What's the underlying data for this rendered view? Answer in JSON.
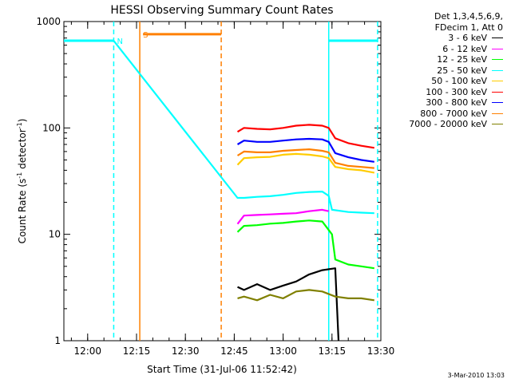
{
  "chart_data": {
    "type": "line",
    "title": "HESSI Observing Summary Count Rates",
    "ylabel": "Count Rate (s^-1 detector^-1)",
    "xlabel": "Start Time (31-Jul-06 11:52:42)",
    "yscale": "log",
    "ylim": [
      1,
      1000
    ],
    "xlim": [
      "11:52:42",
      "13:30:00"
    ],
    "xticks": [
      "12:00",
      "12:15",
      "12:30",
      "12:45",
      "13:00",
      "13:15",
      "13:30"
    ],
    "yticks": [
      "1",
      "10",
      "100",
      "1000"
    ],
    "legend_position": "top-right",
    "legend_header": [
      "Det 1,3,4,5,6,9,",
      "FDecim 1, Att 0"
    ],
    "series": [
      {
        "name": "3 - 6 keV",
        "color": "#000000",
        "points": [
          [
            "12:46",
            3.2
          ],
          [
            "12:48",
            3.0
          ],
          [
            "12:52",
            3.4
          ],
          [
            "12:56",
            3.0
          ],
          [
            "13:00",
            3.3
          ],
          [
            "13:04",
            3.6
          ],
          [
            "13:08",
            4.2
          ],
          [
            "13:12",
            4.6
          ],
          [
            "13:16",
            4.8
          ],
          [
            "13:17",
            1.0
          ]
        ]
      },
      {
        "name": "6 - 12 keV",
        "color": "#ff00ff",
        "points": [
          [
            "12:46",
            12.5
          ],
          [
            "12:48",
            15.0
          ],
          [
            "12:52",
            15.2
          ],
          [
            "12:56",
            15.4
          ],
          [
            "13:00",
            15.6
          ],
          [
            "13:04",
            15.8
          ],
          [
            "13:08",
            16.5
          ],
          [
            "13:12",
            17.0
          ],
          [
            "13:14",
            16.5
          ]
        ]
      },
      {
        "name": "12 - 25 keV",
        "color": "#00ff00",
        "points": [
          [
            "12:46",
            10.5
          ],
          [
            "12:48",
            12.0
          ],
          [
            "12:52",
            12.2
          ],
          [
            "12:56",
            12.6
          ],
          [
            "13:00",
            12.8
          ],
          [
            "13:04",
            13.2
          ],
          [
            "13:08",
            13.5
          ],
          [
            "13:12",
            13.2
          ],
          [
            "13:15",
            10.0
          ],
          [
            "13:16",
            5.8
          ],
          [
            "13:20",
            5.2
          ],
          [
            "13:24",
            5.0
          ],
          [
            "13:28",
            4.8
          ]
        ]
      },
      {
        "name": "25 - 50 keV",
        "color": "#00ffff",
        "points": [
          [
            "11:52:42",
            660
          ],
          [
            "12:08",
            660
          ],
          [
            "12:46",
            22.0
          ],
          [
            "12:48",
            22.0
          ],
          [
            "12:52",
            22.5
          ],
          [
            "12:56",
            22.8
          ],
          [
            "13:00",
            23.5
          ],
          [
            "13:04",
            24.5
          ],
          [
            "13:08",
            25.0
          ],
          [
            "13:12",
            25.2
          ],
          [
            "13:14",
            23.0
          ],
          [
            "13:15",
            17.0
          ],
          [
            "13:20",
            16.2
          ],
          [
            "13:24",
            16.0
          ],
          [
            "13:28",
            15.8
          ],
          [
            "13:14",
            660
          ],
          [
            "13:29",
            660
          ]
        ]
      },
      {
        "name": "50 - 100 keV",
        "color": "#ffcc00",
        "points": [
          [
            "12:46",
            45.0
          ],
          [
            "12:48",
            52.0
          ],
          [
            "12:52",
            53.0
          ],
          [
            "12:56",
            53.5
          ],
          [
            "13:00",
            56.0
          ],
          [
            "13:04",
            57.0
          ],
          [
            "13:08",
            56.0
          ],
          [
            "13:12",
            54.0
          ],
          [
            "13:14",
            52.0
          ],
          [
            "13:16",
            43.0
          ],
          [
            "13:20",
            41.0
          ],
          [
            "13:24",
            40.0
          ],
          [
            "13:28",
            38.0
          ]
        ]
      },
      {
        "name": "100 - 300 keV",
        "color": "#ff0000",
        "points": [
          [
            "12:46",
            92.0
          ],
          [
            "12:48",
            100.0
          ],
          [
            "12:52",
            98.0
          ],
          [
            "12:56",
            97.0
          ],
          [
            "13:00",
            100.0
          ],
          [
            "13:04",
            105.0
          ],
          [
            "13:08",
            107.0
          ],
          [
            "13:12",
            105.0
          ],
          [
            "13:14",
            100.0
          ],
          [
            "13:16",
            80.0
          ],
          [
            "13:20",
            72.0
          ],
          [
            "13:24",
            68.0
          ],
          [
            "13:28",
            65.0
          ]
        ]
      },
      {
        "name": "300 - 800 keV",
        "color": "#0000ff",
        "points": [
          [
            "12:46",
            70.0
          ],
          [
            "12:48",
            76.0
          ],
          [
            "12:52",
            74.0
          ],
          [
            "12:56",
            74.0
          ],
          [
            "13:00",
            76.0
          ],
          [
            "13:04",
            78.0
          ],
          [
            "13:08",
            79.0
          ],
          [
            "13:12",
            78.0
          ],
          [
            "13:14",
            74.0
          ],
          [
            "13:16",
            58.0
          ],
          [
            "13:20",
            53.0
          ],
          [
            "13:24",
            50.0
          ],
          [
            "13:28",
            48.0
          ]
        ]
      },
      {
        "name": "800 - 7000 keV",
        "color": "#ff8000",
        "points": [
          [
            "12:46",
            55.0
          ],
          [
            "12:48",
            60.0
          ],
          [
            "12:52",
            59.0
          ],
          [
            "12:56",
            59.0
          ],
          [
            "13:00",
            61.0
          ],
          [
            "13:04",
            62.0
          ],
          [
            "13:08",
            63.0
          ],
          [
            "13:12",
            61.0
          ],
          [
            "13:14",
            59.0
          ],
          [
            "13:16",
            47.0
          ],
          [
            "13:20",
            44.0
          ],
          [
            "13:24",
            43.0
          ],
          [
            "13:28",
            42.0
          ]
        ]
      },
      {
        "name": "7000 - 20000 keV",
        "color": "#808000",
        "points": [
          [
            "12:46",
            2.5
          ],
          [
            "12:48",
            2.6
          ],
          [
            "12:52",
            2.4
          ],
          [
            "12:56",
            2.7
          ],
          [
            "13:00",
            2.5
          ],
          [
            "13:04",
            2.9
          ],
          [
            "13:08",
            3.0
          ],
          [
            "13:12",
            2.9
          ],
          [
            "13:16",
            2.6
          ],
          [
            "13:20",
            2.5
          ],
          [
            "13:24",
            2.5
          ],
          [
            "13:28",
            2.4
          ]
        ]
      }
    ],
    "annotations": [
      {
        "label": "N",
        "color": "#00ffff",
        "at": "12:09",
        "value": 660
      },
      {
        "label": "S",
        "color": "#ff8000",
        "at": "12:17",
        "value": 760
      }
    ],
    "flag_bars": [
      {
        "name": "night",
        "color": "#00ffff",
        "from": "11:52:42",
        "to": "12:08",
        "value": 660,
        "dashed_at": "12:08"
      },
      {
        "name": "saa",
        "color": "#ff8000",
        "from": "12:17",
        "to": "12:41",
        "value": 760,
        "solid_at": "12:16",
        "dashed_at": "12:41"
      },
      {
        "name": "night-2",
        "color": "#00ffff",
        "from": "13:14",
        "to": "13:29",
        "value": 660,
        "solid_at": "13:14",
        "dashed_at": "13:29"
      }
    ]
  },
  "footer": {
    "timestamp": "3-Mar-2010 13:03"
  }
}
